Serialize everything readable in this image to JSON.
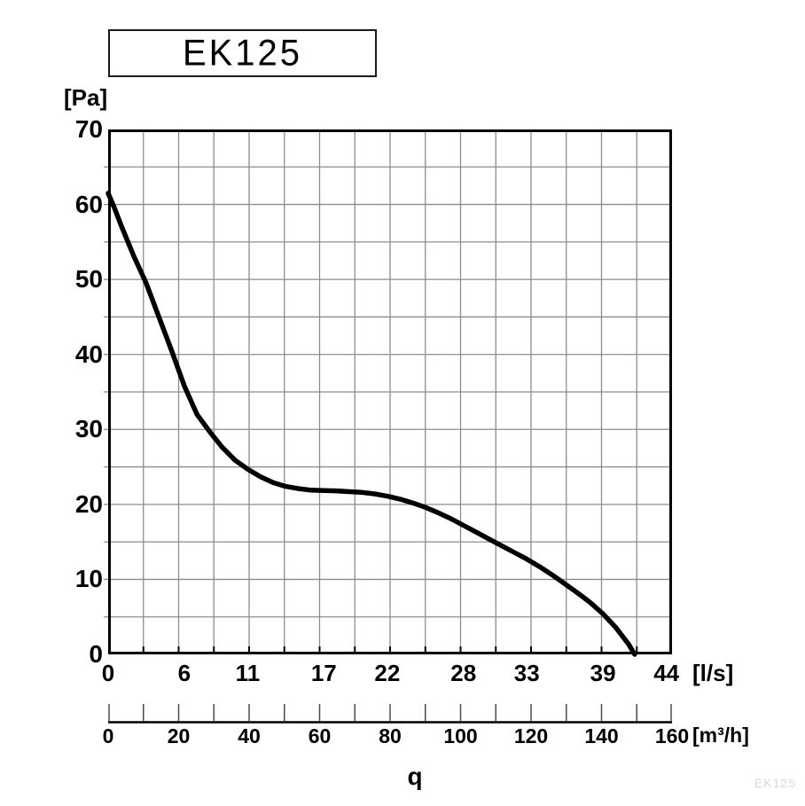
{
  "title": "EK125",
  "watermark": "EK125",
  "q_label": "q",
  "y_axis": {
    "unit": "[Pa]",
    "tick_labels": [
      "70",
      "60",
      "50",
      "40",
      "30",
      "20",
      "10",
      "0"
    ],
    "tick_values": [
      70,
      60,
      50,
      40,
      30,
      20,
      10,
      0
    ]
  },
  "x_axis_ls": {
    "unit": "[l/s]",
    "tick_labels": [
      "0",
      "6",
      "11",
      "17",
      "22",
      "28",
      "33",
      "39",
      "44"
    ],
    "tick_values": [
      0,
      6,
      11,
      17,
      22,
      28,
      33,
      39,
      44
    ]
  },
  "x_axis_m3h": {
    "unit": "[m³/h]",
    "tick_labels": [
      "0",
      "20",
      "40",
      "60",
      "80",
      "100",
      "120",
      "140",
      "160"
    ],
    "tick_values": [
      0,
      20,
      40,
      60,
      80,
      100,
      120,
      140,
      160
    ]
  },
  "colors": {
    "curve": "#000000",
    "grid": "#8c8c8c",
    "frame": "#000000",
    "axis_tick": "#4a4a4a",
    "watermark": "#d9d9d9"
  },
  "chart_data": {
    "type": "line",
    "title": "EK125",
    "xlabel": "q",
    "ylabel": "[Pa]",
    "x_units": [
      "l/s",
      "m³/h"
    ],
    "xlim_ls": [
      0,
      44.44
    ],
    "xlim_m3h": [
      0,
      160
    ],
    "ylim": [
      0,
      70
    ],
    "grid": true,
    "grid_step_y_pa": 5,
    "grid_step_x_m3h": 10,
    "series": [
      {
        "name": "EK125 pressure curve",
        "x_ls": [
          0,
          0.5,
          1,
          2,
          3,
          4,
          5,
          6,
          7,
          8,
          9,
          10,
          11,
          12,
          13,
          14,
          15,
          16,
          17,
          18,
          19,
          20,
          21,
          22,
          23,
          24,
          25,
          26,
          27,
          28,
          29,
          30,
          31,
          32,
          33,
          34,
          35,
          36,
          37,
          38,
          39,
          40,
          41,
          41.5
        ],
        "y_pa": [
          61.5,
          59.5,
          57.3,
          53.2,
          49.5,
          45,
          40.5,
          35.8,
          32,
          29.7,
          27.6,
          25.9,
          24.7,
          23.7,
          22.9,
          22.4,
          22.1,
          21.9,
          21.85,
          21.8,
          21.7,
          21.6,
          21.4,
          21.1,
          20.7,
          20.2,
          19.6,
          18.9,
          18.1,
          17.2,
          16.3,
          15.4,
          14.5,
          13.6,
          12.7,
          11.7,
          10.6,
          9.4,
          8.2,
          6.9,
          5.4,
          3.6,
          1.4,
          0
        ]
      }
    ]
  }
}
